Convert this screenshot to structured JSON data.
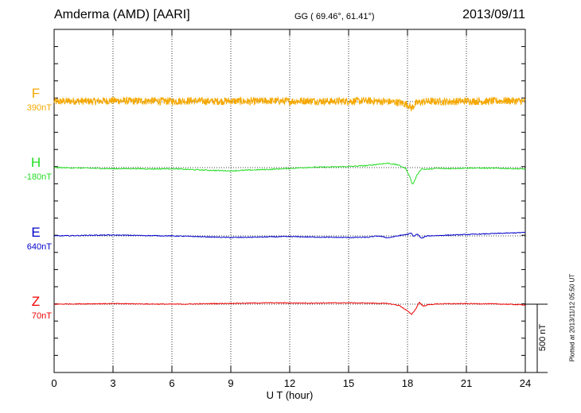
{
  "header": {
    "station": "Amderma (AMD)  [AARI]",
    "coords": "GG ( 69.46°,  61.41°)",
    "date": "2013/09/11"
  },
  "footer": {
    "plotted_note": "Plotted at 2013/11/12 05:50 UT"
  },
  "scale_bar": {
    "label": "500 nT",
    "value_nT": 500
  },
  "colors": {
    "F": "#f5a800",
    "H": "#22dd22",
    "E": "#0000cc",
    "Z": "#ee0000"
  },
  "chart_data": {
    "type": "line",
    "xlabel": "U T (hour)",
    "xlim": [
      0,
      24
    ],
    "xticks": [
      "0",
      "3",
      "6",
      "9",
      "12",
      "15",
      "18",
      "21",
      "24"
    ],
    "grid": true,
    "nT_per_panel_axis": 500,
    "series": [
      {
        "name": "F",
        "baseline_label": "390nT",
        "baseline_nT": 390,
        "x": [
          0,
          1,
          2,
          3,
          4,
          5,
          6,
          7,
          8,
          9,
          10,
          11,
          12,
          13,
          14,
          15,
          16,
          17,
          17.5,
          18,
          18.1,
          18.2,
          18.4,
          18.6,
          19,
          20,
          21,
          22,
          23,
          24
        ],
        "values": [
          390,
          395,
          392,
          398,
          394,
          396,
          393,
          397,
          392,
          395,
          391,
          396,
          393,
          397,
          392,
          394,
          396,
          390,
          385,
          370,
          360,
          340,
          375,
          385,
          392,
          390,
          395,
          392,
          397,
          394
        ],
        "noise_nT": 28
      },
      {
        "name": "H",
        "baseline_label": "-180nT",
        "baseline_nT": -180,
        "x": [
          0,
          1,
          2,
          3,
          4,
          5,
          6,
          7,
          8,
          9,
          10,
          11,
          12,
          13,
          14,
          15,
          16,
          16.5,
          17,
          17.5,
          17.9,
          18.1,
          18.25,
          18.35,
          18.5,
          18.7,
          19,
          19.5,
          20,
          21,
          22,
          23,
          24
        ],
        "values": [
          -180,
          -182,
          -185,
          -188,
          -187,
          -190,
          -188,
          -195,
          -200,
          -204,
          -198,
          -193,
          -186,
          -178,
          -176,
          -172,
          -165,
          -155,
          -148,
          -160,
          -185,
          -240,
          -305,
          -280,
          -230,
          -190,
          -193,
          -185,
          -188,
          -183,
          -184,
          -186,
          -190
        ],
        "noise_nT": 4
      },
      {
        "name": "E",
        "baseline_label": "640nT",
        "baseline_nT": 640,
        "x": [
          0,
          1,
          2,
          3,
          4,
          5,
          6,
          7,
          8,
          9,
          10,
          11,
          12,
          13,
          14,
          15,
          16,
          16.5,
          17,
          17.5,
          18,
          18.2,
          18.3,
          18.5,
          18.7,
          19,
          20,
          21,
          22,
          23,
          24
        ],
        "values": [
          640,
          642,
          645,
          646,
          644,
          642,
          640,
          636,
          632,
          628,
          630,
          633,
          635,
          632,
          630,
          628,
          630,
          640,
          626,
          640,
          652,
          660,
          635,
          655,
          622,
          640,
          645,
          650,
          655,
          660,
          665
        ],
        "noise_nT": 3
      },
      {
        "name": "Z",
        "baseline_label": "70nT",
        "baseline_nT": 70,
        "x": [
          0,
          1,
          2,
          3,
          4,
          5,
          6,
          7,
          8,
          9,
          10,
          11,
          12,
          13,
          14,
          15,
          16,
          17,
          17.6,
          18,
          18.2,
          18.4,
          18.6,
          18.8,
          19,
          19.5,
          20,
          21,
          22,
          23,
          24
        ],
        "values": [
          70,
          72,
          73,
          74,
          73,
          71,
          70,
          71,
          74,
          76,
          78,
          80,
          79,
          78,
          79,
          80,
          78,
          75,
          60,
          20,
          -5,
          30,
          85,
          55,
          65,
          72,
          73,
          74,
          73,
          70,
          65
        ],
        "noise_nT": 3
      }
    ]
  }
}
